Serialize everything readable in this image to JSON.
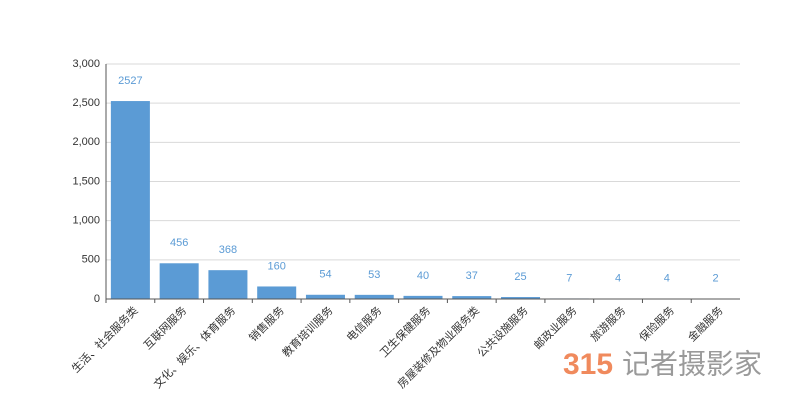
{
  "chart_data": {
    "type": "bar",
    "categories": [
      "生活、社会服务类",
      "互联网服务",
      "文化、娱乐、体育服务",
      "销售服务",
      "教育培训服务",
      "电信服务",
      "卫生保健服务",
      "房屋装修及物业服务类",
      "公共设施服务",
      "邮政业服务",
      "旅游服务",
      "保险服务",
      "金融服务"
    ],
    "values": [
      2527,
      456,
      368,
      160,
      54,
      53,
      40,
      37,
      25,
      7,
      4,
      4,
      2
    ],
    "color": "#5b9bd5",
    "ylim": [
      0,
      3000
    ],
    "yticks": [
      0,
      500,
      {
        "value": 1000,
        "label": "1,000"
      },
      {
        "value": 1500,
        "label": "1,500"
      },
      {
        "value": 2000,
        "label": "2,000"
      },
      {
        "value": 2500,
        "label": "2,500"
      },
      {
        "value": 3000,
        "label": "3,000"
      }
    ],
    "grid": true
  },
  "watermark": {
    "number": "315",
    "text": "记者摄影家"
  }
}
